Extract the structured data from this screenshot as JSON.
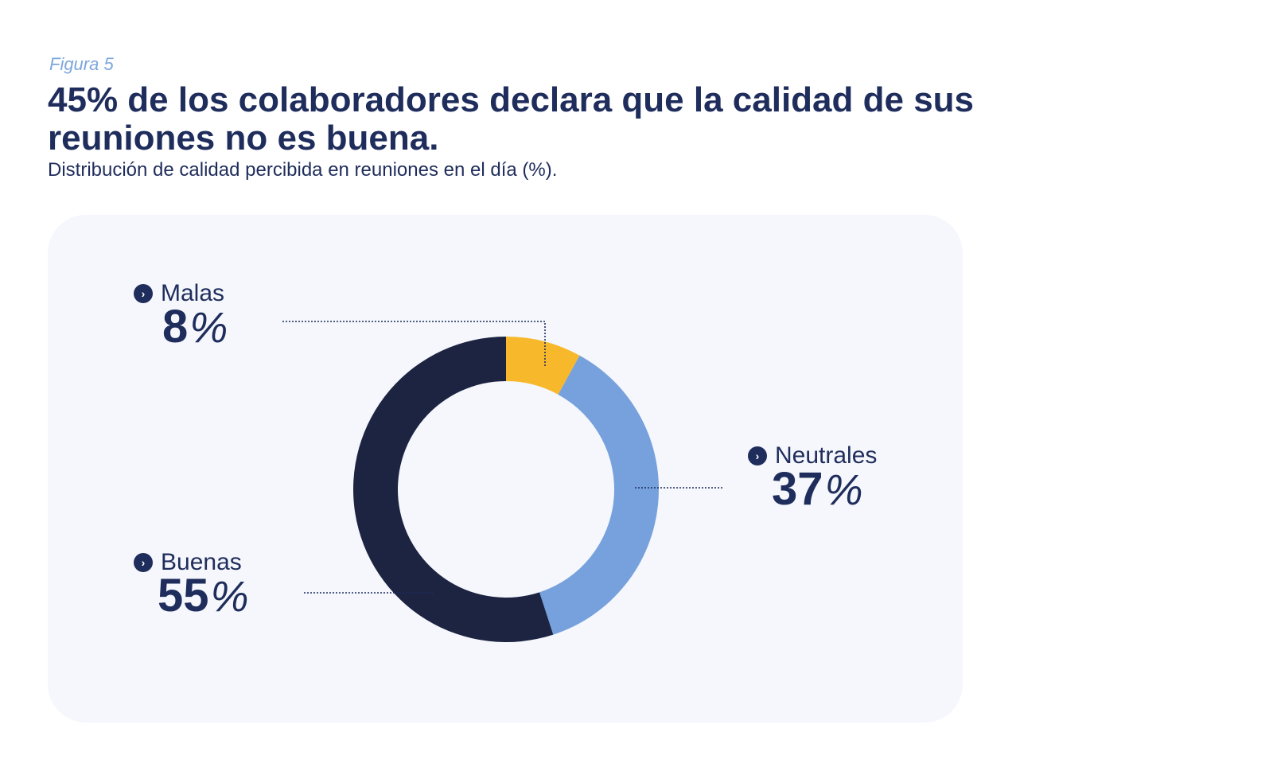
{
  "header": {
    "figure_label": "Figura 5",
    "title": "45% de los colaboradores declara que la calidad de sus reuniones no es buena.",
    "subtitle": "Distribución de calidad percibida en reuniones en el día (%)."
  },
  "chart_data": {
    "type": "pie",
    "variant": "donut",
    "title": "45% de los colaboradores declara que la calidad de sus reuniones no es buena.",
    "subtitle": "Distribución de calidad percibida en reuniones en el día (%).",
    "unit": "%",
    "slices": [
      {
        "label": "Malas",
        "value": 8,
        "display": "8",
        "color": "#f7b92b"
      },
      {
        "label": "Neutrales",
        "value": 37,
        "display": "37",
        "color": "#76a1dc"
      },
      {
        "label": "Buenas",
        "value": 55,
        "display": "55",
        "color": "#1c2442"
      }
    ],
    "percent_symbol": "%",
    "bullet_icon": "chevron-right-icon"
  }
}
